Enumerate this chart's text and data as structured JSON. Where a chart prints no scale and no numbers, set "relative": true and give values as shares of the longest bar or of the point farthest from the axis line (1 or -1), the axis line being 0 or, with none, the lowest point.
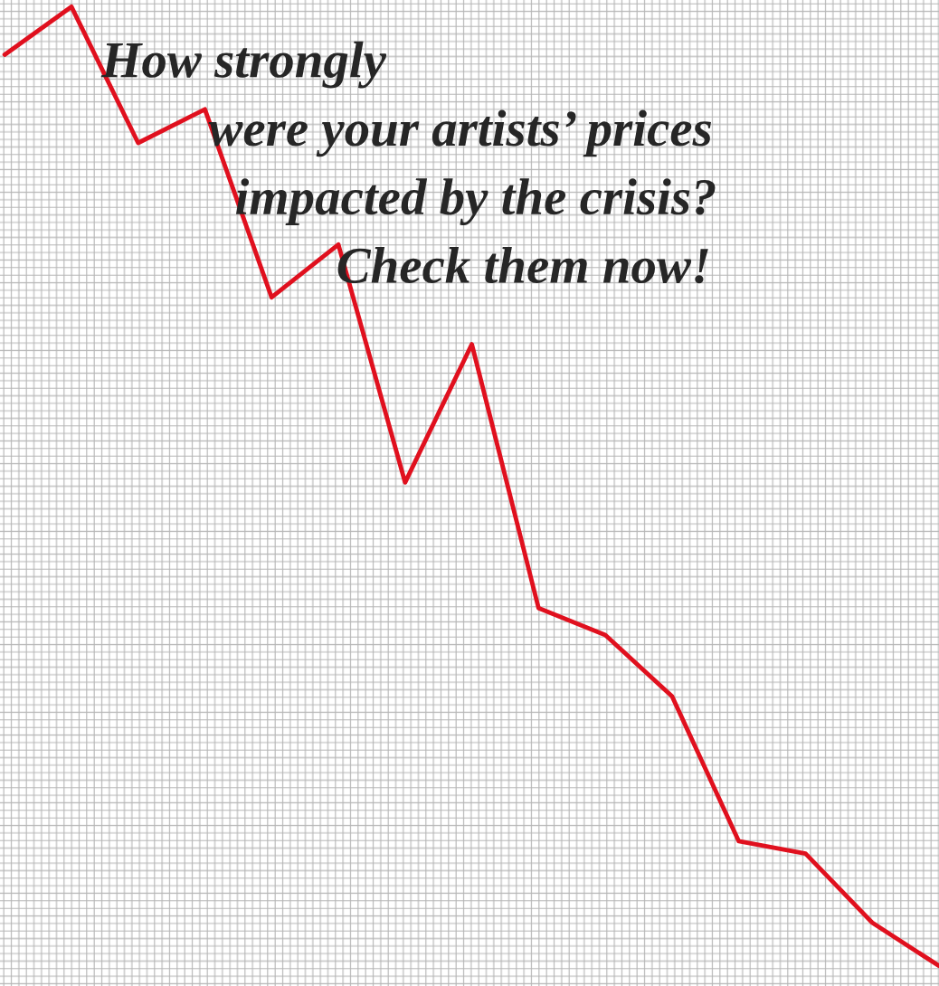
{
  "chart_data": {
    "type": "line",
    "title": "How strongly\nwere your artists’ prices\nimpacted by the crisis?\nCheck them now!",
    "relative": true,
    "categories": [
      null,
      null,
      null,
      null,
      null,
      null,
      null,
      null,
      null,
      null,
      null,
      null,
      null,
      null,
      null
    ],
    "series": [
      {
        "color": "#e0101e",
        "values": [
          0.95,
          1,
          0.858,
          0.893,
          0.697,
          0.752,
          0.504,
          0.648,
          0.373,
          0.345,
          0.281,
          0.13,
          0.117,
          0.045,
          0
        ]
      }
    ],
    "legend": false,
    "marker": "none",
    "line_style": "solid"
  }
}
